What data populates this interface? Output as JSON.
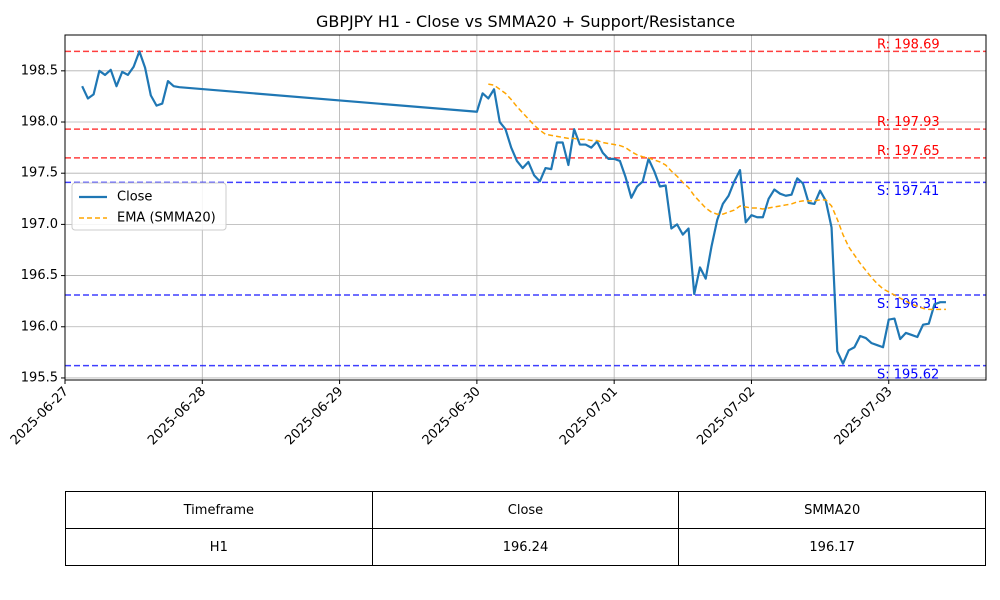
{
  "chart_data": {
    "type": "line",
    "title": "GBPJPY H1 - Close vs SMMA20 + Support/Resistance",
    "xlabel": "",
    "ylabel": "",
    "xlim": [
      "2025-06-27 00:00",
      "2025-07-03 17:00"
    ],
    "ylim": [
      195.48,
      198.85
    ],
    "x_ticks": [
      "2025-06-27",
      "2025-06-28",
      "2025-06-29",
      "2025-06-30",
      "2025-07-01",
      "2025-07-02",
      "2025-07-03"
    ],
    "y_ticks": [
      "195.5",
      "196.0",
      "196.5",
      "197.0",
      "197.5",
      "198.0",
      "198.5"
    ],
    "grid": true,
    "legend_position": "center-left",
    "series": [
      {
        "name": "Close",
        "color": "#1f77b4",
        "style": "solid",
        "points": [
          [
            "2025-06-27 03:00",
            198.35
          ],
          [
            "2025-06-27 04:00",
            198.23
          ],
          [
            "2025-06-27 05:00",
            198.27
          ],
          [
            "2025-06-27 06:00",
            198.5
          ],
          [
            "2025-06-27 07:00",
            198.46
          ],
          [
            "2025-06-27 08:00",
            198.51
          ],
          [
            "2025-06-27 09:00",
            198.35
          ],
          [
            "2025-06-27 10:00",
            198.49
          ],
          [
            "2025-06-27 11:00",
            198.46
          ],
          [
            "2025-06-27 12:00",
            198.54
          ],
          [
            "2025-06-27 13:00",
            198.69
          ],
          [
            "2025-06-27 14:00",
            198.53
          ],
          [
            "2025-06-27 15:00",
            198.26
          ],
          [
            "2025-06-27 16:00",
            198.16
          ],
          [
            "2025-06-27 17:00",
            198.18
          ],
          [
            "2025-06-27 18:00",
            198.4
          ],
          [
            "2025-06-27 19:00",
            198.35
          ],
          [
            "2025-06-27 20:00",
            198.34
          ],
          [
            "2025-06-30 00:00",
            198.1
          ],
          [
            "2025-06-30 01:00",
            198.28
          ],
          [
            "2025-06-30 02:00",
            198.23
          ],
          [
            "2025-06-30 03:00",
            198.32
          ],
          [
            "2025-06-30 04:00",
            198.0
          ],
          [
            "2025-06-30 05:00",
            197.93
          ],
          [
            "2025-06-30 06:00",
            197.75
          ],
          [
            "2025-06-30 07:00",
            197.62
          ],
          [
            "2025-06-30 08:00",
            197.55
          ],
          [
            "2025-06-30 09:00",
            197.61
          ],
          [
            "2025-06-30 10:00",
            197.48
          ],
          [
            "2025-06-30 11:00",
            197.42
          ],
          [
            "2025-06-30 12:00",
            197.55
          ],
          [
            "2025-06-30 13:00",
            197.54
          ],
          [
            "2025-06-30 14:00",
            197.8
          ],
          [
            "2025-06-30 15:00",
            197.8
          ],
          [
            "2025-06-30 16:00",
            197.58
          ],
          [
            "2025-06-30 17:00",
            197.93
          ],
          [
            "2025-06-30 18:00",
            197.78
          ],
          [
            "2025-06-30 19:00",
            197.78
          ],
          [
            "2025-06-30 20:00",
            197.75
          ],
          [
            "2025-06-30 21:00",
            197.81
          ],
          [
            "2025-06-30 22:00",
            197.7
          ],
          [
            "2025-06-30 23:00",
            197.64
          ],
          [
            "2025-07-01 00:00",
            197.64
          ],
          [
            "2025-07-01 01:00",
            197.62
          ],
          [
            "2025-07-01 02:00",
            197.46
          ],
          [
            "2025-07-01 03:00",
            197.26
          ],
          [
            "2025-07-01 04:00",
            197.37
          ],
          [
            "2025-07-01 05:00",
            197.42
          ],
          [
            "2025-07-01 06:00",
            197.64
          ],
          [
            "2025-07-01 07:00",
            197.52
          ],
          [
            "2025-07-01 08:00",
            197.37
          ],
          [
            "2025-07-01 09:00",
            197.38
          ],
          [
            "2025-07-01 10:00",
            196.96
          ],
          [
            "2025-07-01 11:00",
            197.0
          ],
          [
            "2025-07-01 12:00",
            196.9
          ],
          [
            "2025-07-01 13:00",
            196.96
          ],
          [
            "2025-07-01 14:00",
            196.32
          ],
          [
            "2025-07-01 15:00",
            196.58
          ],
          [
            "2025-07-01 16:00",
            196.47
          ],
          [
            "2025-07-01 17:00",
            196.78
          ],
          [
            "2025-07-01 18:00",
            197.04
          ],
          [
            "2025-07-01 19:00",
            197.2
          ],
          [
            "2025-07-01 20:00",
            197.28
          ],
          [
            "2025-07-01 21:00",
            197.42
          ],
          [
            "2025-07-01 22:00",
            197.53
          ],
          [
            "2025-07-01 23:00",
            197.02
          ],
          [
            "2025-07-02 00:00",
            197.09
          ],
          [
            "2025-07-02 01:00",
            197.07
          ],
          [
            "2025-07-02 02:00",
            197.07
          ],
          [
            "2025-07-02 03:00",
            197.25
          ],
          [
            "2025-07-02 04:00",
            197.34
          ],
          [
            "2025-07-02 05:00",
            197.3
          ],
          [
            "2025-07-02 06:00",
            197.28
          ],
          [
            "2025-07-02 07:00",
            197.29
          ],
          [
            "2025-07-02 08:00",
            197.45
          ],
          [
            "2025-07-02 09:00",
            197.4
          ],
          [
            "2025-07-02 10:00",
            197.21
          ],
          [
            "2025-07-02 11:00",
            197.2
          ],
          [
            "2025-07-02 12:00",
            197.33
          ],
          [
            "2025-07-02 13:00",
            197.23
          ],
          [
            "2025-07-02 14:00",
            196.97
          ],
          [
            "2025-07-02 15:00",
            195.76
          ],
          [
            "2025-07-02 16:00",
            195.64
          ],
          [
            "2025-07-02 17:00",
            195.77
          ],
          [
            "2025-07-02 18:00",
            195.8
          ],
          [
            "2025-07-02 19:00",
            195.91
          ],
          [
            "2025-07-02 20:00",
            195.89
          ],
          [
            "2025-07-02 21:00",
            195.84
          ],
          [
            "2025-07-02 22:00",
            195.82
          ],
          [
            "2025-07-02 23:00",
            195.8
          ],
          [
            "2025-07-03 00:00",
            196.07
          ],
          [
            "2025-07-03 01:00",
            196.08
          ],
          [
            "2025-07-03 02:00",
            195.88
          ],
          [
            "2025-07-03 03:00",
            195.94
          ],
          [
            "2025-07-03 04:00",
            195.92
          ],
          [
            "2025-07-03 05:00",
            195.9
          ],
          [
            "2025-07-03 06:00",
            196.02
          ],
          [
            "2025-07-03 07:00",
            196.03
          ],
          [
            "2025-07-03 08:00",
            196.22
          ],
          [
            "2025-07-03 09:00",
            196.24
          ],
          [
            "2025-07-03 10:00",
            196.24
          ]
        ]
      },
      {
        "name": "EMA (SMMA20)",
        "color": "#ffa500",
        "style": "dashed",
        "points": [
          [
            "2025-06-30 02:00",
            198.37
          ],
          [
            "2025-06-30 03:00",
            198.36
          ],
          [
            "2025-06-30 04:00",
            198.32
          ],
          [
            "2025-06-30 05:00",
            198.28
          ],
          [
            "2025-06-30 06:00",
            198.22
          ],
          [
            "2025-06-30 07:00",
            198.15
          ],
          [
            "2025-06-30 08:00",
            198.09
          ],
          [
            "2025-06-30 09:00",
            198.03
          ],
          [
            "2025-06-30 10:00",
            197.97
          ],
          [
            "2025-06-30 11:00",
            197.92
          ],
          [
            "2025-06-30 12:00",
            197.88
          ],
          [
            "2025-06-30 13:00",
            197.87
          ],
          [
            "2025-06-30 14:00",
            197.86
          ],
          [
            "2025-06-30 15:00",
            197.85
          ],
          [
            "2025-06-30 16:00",
            197.84
          ],
          [
            "2025-06-30 17:00",
            197.84
          ],
          [
            "2025-06-30 18:00",
            197.83
          ],
          [
            "2025-06-30 19:00",
            197.83
          ],
          [
            "2025-06-30 20:00",
            197.82
          ],
          [
            "2025-06-30 21:00",
            197.82
          ],
          [
            "2025-06-30 22:00",
            197.8
          ],
          [
            "2025-06-30 23:00",
            197.79
          ],
          [
            "2025-07-01 00:00",
            197.78
          ],
          [
            "2025-07-01 01:00",
            197.77
          ],
          [
            "2025-07-01 02:00",
            197.75
          ],
          [
            "2025-07-01 03:00",
            197.71
          ],
          [
            "2025-07-01 04:00",
            197.68
          ],
          [
            "2025-07-01 05:00",
            197.66
          ],
          [
            "2025-07-01 06:00",
            197.65
          ],
          [
            "2025-07-01 07:00",
            197.63
          ],
          [
            "2025-07-01 08:00",
            197.61
          ],
          [
            "2025-07-01 09:00",
            197.58
          ],
          [
            "2025-07-01 10:00",
            197.52
          ],
          [
            "2025-07-01 11:00",
            197.47
          ],
          [
            "2025-07-01 12:00",
            197.41
          ],
          [
            "2025-07-01 13:00",
            197.36
          ],
          [
            "2025-07-01 14:00",
            197.28
          ],
          [
            "2025-07-01 15:00",
            197.22
          ],
          [
            "2025-07-01 16:00",
            197.16
          ],
          [
            "2025-07-01 17:00",
            197.12
          ],
          [
            "2025-07-01 18:00",
            197.1
          ],
          [
            "2025-07-01 19:00",
            197.1
          ],
          [
            "2025-07-01 20:00",
            197.12
          ],
          [
            "2025-07-01 21:00",
            197.14
          ],
          [
            "2025-07-01 22:00",
            197.18
          ],
          [
            "2025-07-01 23:00",
            197.17
          ],
          [
            "2025-07-02 00:00",
            197.16
          ],
          [
            "2025-07-02 01:00",
            197.16
          ],
          [
            "2025-07-02 02:00",
            197.15
          ],
          [
            "2025-07-02 03:00",
            197.16
          ],
          [
            "2025-07-02 04:00",
            197.17
          ],
          [
            "2025-07-02 05:00",
            197.18
          ],
          [
            "2025-07-02 06:00",
            197.19
          ],
          [
            "2025-07-02 07:00",
            197.2
          ],
          [
            "2025-07-02 08:00",
            197.22
          ],
          [
            "2025-07-02 09:00",
            197.23
          ],
          [
            "2025-07-02 10:00",
            197.23
          ],
          [
            "2025-07-02 11:00",
            197.23
          ],
          [
            "2025-07-02 12:00",
            197.24
          ],
          [
            "2025-07-02 13:00",
            197.24
          ],
          [
            "2025-07-02 14:00",
            197.18
          ],
          [
            "2025-07-02 15:00",
            197.05
          ],
          [
            "2025-07-02 16:00",
            196.9
          ],
          [
            "2025-07-02 17:00",
            196.78
          ],
          [
            "2025-07-02 18:00",
            196.7
          ],
          [
            "2025-07-02 19:00",
            196.62
          ],
          [
            "2025-07-02 20:00",
            196.55
          ],
          [
            "2025-07-02 21:00",
            196.48
          ],
          [
            "2025-07-02 22:00",
            196.42
          ],
          [
            "2025-07-02 23:00",
            196.37
          ],
          [
            "2025-07-03 00:00",
            196.34
          ],
          [
            "2025-07-03 01:00",
            196.31
          ],
          [
            "2025-07-03 02:00",
            196.28
          ],
          [
            "2025-07-03 03:00",
            196.25
          ],
          [
            "2025-07-03 04:00",
            196.22
          ],
          [
            "2025-07-03 05:00",
            196.2
          ],
          [
            "2025-07-03 06:00",
            196.18
          ],
          [
            "2025-07-03 07:00",
            196.17
          ],
          [
            "2025-07-03 08:00",
            196.17
          ],
          [
            "2025-07-03 09:00",
            196.17
          ],
          [
            "2025-07-03 10:00",
            196.17
          ]
        ]
      }
    ],
    "levels": [
      {
        "type": "resistance",
        "value": 198.69,
        "label": "R: 198.69",
        "color": "#ff0000"
      },
      {
        "type": "resistance",
        "value": 197.93,
        "label": "R: 197.93",
        "color": "#ff0000"
      },
      {
        "type": "resistance",
        "value": 197.65,
        "label": "R: 197.65",
        "color": "#ff0000"
      },
      {
        "type": "support",
        "value": 197.41,
        "label": "S: 197.41",
        "color": "#0000ff"
      },
      {
        "type": "support",
        "value": 196.31,
        "label": "S: 196.31",
        "color": "#0000ff"
      },
      {
        "type": "support",
        "value": 195.62,
        "label": "S: 195.62",
        "color": "#0000ff"
      }
    ]
  },
  "table": {
    "headers": [
      "Timeframe",
      "Close",
      "SMMA20"
    ],
    "row": [
      "H1",
      "196.24",
      "196.17"
    ]
  }
}
